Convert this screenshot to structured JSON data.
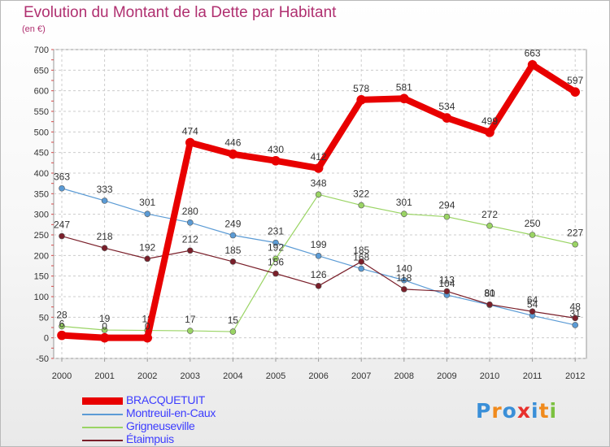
{
  "title": "Evolution du Montant de la Dette par Habitant",
  "unit": "(en €)",
  "logo": {
    "text": "Proxiti",
    "colors": [
      "#3a8fd8",
      "#f08a1c",
      "#3a8fd8",
      "#e8302c",
      "#3a8fd8",
      "#f08a1c",
      "#7cc140"
    ]
  },
  "chart_data": {
    "type": "line",
    "x": [
      "2000",
      "2001",
      "2002",
      "2003",
      "2004",
      "2005",
      "2006",
      "2007",
      "2008",
      "2009",
      "2010",
      "2011",
      "2012"
    ],
    "ylim": [
      -50,
      700
    ],
    "yticks": [
      -50,
      0,
      50,
      100,
      150,
      200,
      250,
      300,
      350,
      400,
      450,
      500,
      550,
      600,
      650,
      700
    ],
    "grid": true,
    "legend_position": "bottom",
    "series": [
      {
        "name": "BRACQUETUIT",
        "color": "#e80000",
        "width": 8,
        "values": [
          6,
          0,
          0,
          474,
          446,
          430,
          412,
          578,
          581,
          534,
          499,
          663,
          597
        ]
      },
      {
        "name": "Montreuil-en-Caux",
        "color": "#5b9bd5",
        "width": 1.2,
        "values": [
          363,
          333,
          301,
          280,
          249,
          231,
          199,
          168,
          140,
          104,
          80,
          54,
          31
        ]
      },
      {
        "name": "Grigneuseville",
        "color": "#9ad464",
        "width": 1.2,
        "values": [
          28,
          19,
          18,
          17,
          15,
          192,
          348,
          322,
          301,
          294,
          272,
          250,
          227
        ]
      },
      {
        "name": "Étaimpuis",
        "color": "#7a1f2a",
        "width": 1.2,
        "values": [
          247,
          218,
          192,
          212,
          185,
          156,
          126,
          185,
          118,
          113,
          81,
          64,
          48
        ]
      }
    ]
  }
}
